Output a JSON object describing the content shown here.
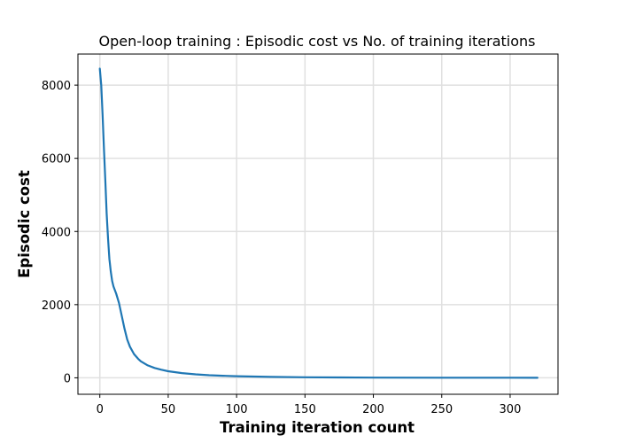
{
  "chart_data": {
    "type": "line",
    "title": "Open-loop training : Episodic cost vs No. of training iterations",
    "xlabel": "Training iteration count",
    "ylabel": "Episodic cost",
    "xlim": [
      -16,
      335
    ],
    "ylim": [
      -450,
      8850
    ],
    "xticks": [
      0,
      50,
      100,
      150,
      200,
      250,
      300
    ],
    "yticks": [
      0,
      2000,
      4000,
      6000,
      8000
    ],
    "xtick_labels": [
      "0",
      "50",
      "100",
      "150",
      "200",
      "250",
      "300"
    ],
    "ytick_labels": [
      "0",
      "2000",
      "4000",
      "6000",
      "8000"
    ],
    "grid": true,
    "series": [
      {
        "color": "#1f77b4",
        "x": [
          0,
          1,
          2,
          3,
          4,
          5,
          6,
          7,
          8,
          9,
          10,
          12,
          14,
          16,
          18,
          20,
          22,
          25,
          28,
          30,
          35,
          40,
          45,
          50,
          60,
          70,
          80,
          90,
          100,
          125,
          150,
          175,
          200,
          250,
          300,
          320
        ],
        "y": [
          8450,
          8000,
          7200,
          6300,
          5400,
          4500,
          3800,
          3250,
          2900,
          2650,
          2500,
          2300,
          2050,
          1700,
          1350,
          1050,
          850,
          650,
          520,
          450,
          340,
          270,
          220,
          180,
          130,
          95,
          70,
          55,
          45,
          25,
          15,
          10,
          6,
          3,
          2,
          1
        ]
      }
    ]
  }
}
